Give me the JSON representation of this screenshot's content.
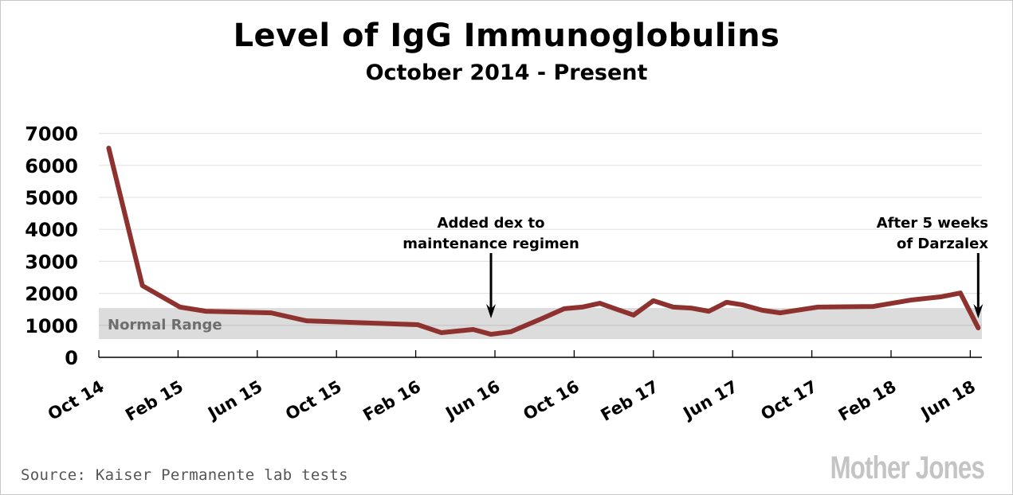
{
  "chart_data": {
    "type": "line",
    "title": "Level of IgG Immunoglobulins",
    "subtitle": "October 2014 - Present",
    "xlabel": "",
    "ylabel": "",
    "ylim": [
      0,
      7000
    ],
    "yticks": [
      "0",
      "1000",
      "2000",
      "3000",
      "4000",
      "5000",
      "6000",
      "7000"
    ],
    "x_unit": "months since Oct 2014",
    "xlim": [
      0,
      44.6
    ],
    "xticks": [
      {
        "label": "Oct 14",
        "x": 0
      },
      {
        "label": "Feb 15",
        "x": 4
      },
      {
        "label": "Jun 15",
        "x": 8
      },
      {
        "label": "Oct 15",
        "x": 12
      },
      {
        "label": "Feb 16",
        "x": 16
      },
      {
        "label": "Jun 16",
        "x": 20
      },
      {
        "label": "Oct 16",
        "x": 24
      },
      {
        "label": "Feb 17",
        "x": 28
      },
      {
        "label": "Jun 17",
        "x": 32
      },
      {
        "label": "Oct 17",
        "x": 36
      },
      {
        "label": "Feb 18",
        "x": 40
      },
      {
        "label": "Jun 18",
        "x": 44
      }
    ],
    "grid": true,
    "series": [
      {
        "name": "IgG",
        "color": "#8e3230",
        "x": [
          0.5,
          2.2,
          4.1,
          5.4,
          8.7,
          10.5,
          16.1,
          17.3,
          18.9,
          19.8,
          20.8,
          22.4,
          23.5,
          24.4,
          25.3,
          26.2,
          27.0,
          28.0,
          29.0,
          29.9,
          30.8,
          31.7,
          32.5,
          33.5,
          34.4,
          36.3,
          39.1,
          41.0,
          42.5,
          43.5,
          44.4
        ],
        "y": [
          6540,
          2240,
          1570,
          1440,
          1390,
          1140,
          1020,
          770,
          870,
          720,
          800,
          1220,
          1520,
          1570,
          1690,
          1490,
          1320,
          1770,
          1570,
          1540,
          1440,
          1720,
          1640,
          1470,
          1390,
          1570,
          1590,
          1790,
          1890,
          2010,
          920
        ]
      }
    ],
    "band": {
      "label": "Normal Range",
      "range": [
        570,
        1540
      ],
      "color": "#dcdcdc"
    },
    "annotations": [
      {
        "lines": [
          "Added dex to",
          "maintenance regimen"
        ],
        "x": 19.8,
        "align": "center"
      },
      {
        "lines": [
          "After 5 weeks",
          "of Darzalex"
        ],
        "x": 44.4,
        "align": "right"
      }
    ]
  },
  "footer": {
    "source": "Source: Kaiser Permanente lab tests",
    "logo": "Mother Jones"
  }
}
